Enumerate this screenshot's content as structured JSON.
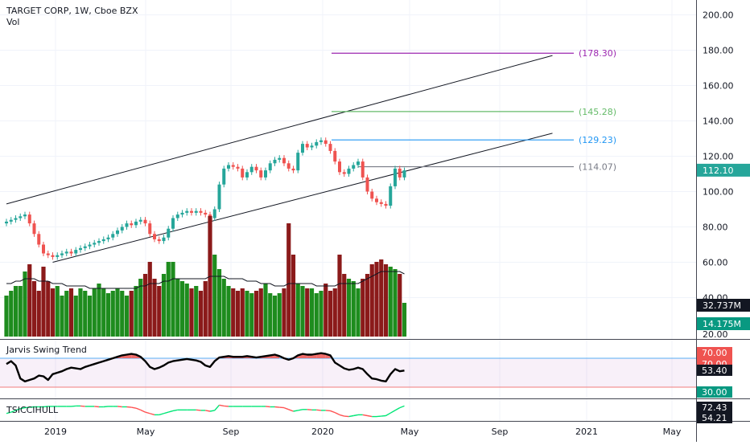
{
  "header": {
    "title": "TARGET CORP, 1W, Cboe BZX",
    "vol_label": "Vol"
  },
  "price_axis": {
    "ticks": [
      "200.00",
      "180.00",
      "160.00",
      "140.00",
      "120.00",
      "100.00",
      "80.00",
      "60.00",
      "40.00"
    ],
    "last_price": "112.10",
    "last_price_color": "#26a69a"
  },
  "volume_axis": {
    "ticks": [
      "20.00"
    ],
    "badges": [
      {
        "text": "32.737M",
        "bg": "#131722"
      },
      {
        "text": "14.175M",
        "bg": "#089981"
      }
    ]
  },
  "indicators": {
    "swing_title": "Jarvis Swing Trend",
    "swing_badges": [
      {
        "text": "70.00",
        "bg": "#ef5350"
      },
      {
        "text": "70.00",
        "bg": "#ef5350"
      },
      {
        "text": "53.40",
        "bg": "#131722"
      },
      {
        "text": "30.00",
        "bg": "#089981"
      }
    ],
    "tsi_title": "TSICCIHULL",
    "tsi_badges": [
      {
        "text": "72.43",
        "bg": "#131722"
      },
      {
        "text": "54.21",
        "bg": "#131722"
      }
    ]
  },
  "time_axis": {
    "labels": [
      "2019",
      "May",
      "Sep",
      "2020",
      "May",
      "Sep",
      "2021",
      "May"
    ]
  },
  "levels": [
    {
      "label": "(178.30)",
      "value": 178.3,
      "color": "#9c27b0"
    },
    {
      "label": "(145.28)",
      "value": 145.28,
      "color": "#66bb6a"
    },
    {
      "label": "(129.23)",
      "value": 129.23,
      "color": "#2196f3"
    },
    {
      "label": "(114.07)",
      "value": 114.07,
      "color": "#787b86"
    }
  ],
  "colors": {
    "up": "#26a69a",
    "down": "#ef5350",
    "vol_up": "#1e8c1e",
    "vol_down": "#8b1a1a"
  },
  "chart_data": {
    "type": "candlestick",
    "title": "TARGET CORP, 1W, Cboe BZX",
    "ylim": [
      40,
      205
    ],
    "channel_lines": [
      {
        "start": [
          0,
          93
        ],
        "end": [
          118,
          177
        ]
      },
      {
        "start": [
          10,
          60
        ],
        "end": [
          118,
          133
        ]
      }
    ],
    "close": [
      83,
      84,
      85,
      86,
      87,
      82,
      76,
      70,
      65,
      64,
      63,
      64,
      65,
      66,
      65,
      67,
      68,
      69,
      70,
      71,
      72,
      73,
      74,
      76,
      78,
      80,
      82,
      81,
      83,
      84,
      82,
      76,
      73,
      72,
      74,
      79,
      85,
      87,
      88,
      89,
      88,
      89,
      88,
      87,
      85,
      90,
      104,
      113,
      115,
      114,
      113,
      108,
      111,
      114,
      112,
      108,
      112,
      116,
      118,
      119,
      116,
      113,
      112,
      122,
      127,
      125,
      126,
      128,
      129,
      127,
      123,
      117,
      111,
      110,
      113,
      115,
      117,
      108,
      100,
      96,
      94,
      93,
      92,
      103,
      113,
      108,
      112
    ],
    "volume": [
      17,
      19,
      21,
      21,
      27,
      30,
      23,
      19,
      29,
      23,
      20,
      21,
      17,
      19,
      20,
      17,
      20,
      19,
      17,
      20,
      22,
      20,
      18,
      19,
      20,
      19,
      17,
      19,
      21,
      24,
      26,
      31,
      24,
      21,
      26,
      31,
      31,
      24,
      23,
      22,
      20,
      21,
      19,
      23,
      50,
      34,
      28,
      24,
      21,
      20,
      19,
      20,
      19,
      18,
      19,
      20,
      22,
      18,
      17,
      18,
      20,
      47,
      34,
      22,
      21,
      20,
      20,
      18,
      19,
      22,
      19,
      20,
      34,
      26,
      24,
      23,
      20,
      24,
      26,
      30,
      31,
      32,
      30,
      29,
      28,
      26,
      14
    ],
    "vol_ma": [
      22,
      22,
      23,
      23,
      24,
      24,
      24,
      23,
      23,
      23,
      22,
      22,
      22,
      21,
      21,
      21,
      21,
      21,
      20,
      20,
      20,
      20,
      20,
      20,
      20,
      20,
      20,
      20,
      20,
      21,
      21,
      22,
      22,
      22,
      23,
      23,
      24,
      24,
      24,
      24,
      24,
      24,
      24,
      24,
      25,
      25,
      25,
      25,
      24,
      24,
      24,
      24,
      23,
      23,
      23,
      22,
      22,
      22,
      21,
      21,
      21,
      22,
      22,
      22,
      22,
      22,
      22,
      21,
      21,
      21,
      21,
      21,
      22,
      22,
      22,
      22,
      22,
      23,
      24,
      25,
      26,
      27,
      27,
      27,
      27,
      27,
      26
    ],
    "swing": [
      62,
      66,
      60,
      42,
      38,
      40,
      42,
      46,
      45,
      40,
      48,
      50,
      52,
      55,
      57,
      56,
      55,
      58,
      60,
      62,
      64,
      66,
      68,
      70,
      72,
      74,
      75,
      76,
      75,
      72,
      66,
      58,
      55,
      57,
      60,
      64,
      66,
      67,
      68,
      69,
      68,
      67,
      65,
      60,
      58,
      66,
      71,
      72,
      73,
      72,
      72,
      72,
      73,
      72,
      71,
      72,
      73,
      74,
      75,
      73,
      70,
      68,
      70,
      74,
      76,
      75,
      75,
      76,
      77,
      76,
      74,
      64,
      60,
      56,
      54,
      55,
      57,
      55,
      48,
      42,
      41,
      39,
      38,
      48,
      55,
      52,
      53
    ],
    "tsi": [
      55,
      58,
      62,
      66,
      68,
      69,
      70,
      70,
      70,
      71,
      71,
      71,
      71,
      71,
      71,
      72,
      72,
      71,
      71,
      71,
      70,
      70,
      71,
      71,
      71,
      70,
      70,
      69,
      67,
      63,
      58,
      55,
      52,
      52,
      55,
      58,
      61,
      63,
      63,
      63,
      63,
      63,
      62,
      62,
      60,
      62,
      74,
      72,
      71,
      71,
      71,
      71,
      71,
      71,
      71,
      71,
      71,
      70,
      70,
      69,
      68,
      64,
      60,
      62,
      64,
      64,
      63,
      63,
      62,
      62,
      61,
      57,
      52,
      49,
      48,
      50,
      52,
      52,
      50,
      48,
      48,
      49,
      50,
      56,
      62,
      68,
      72
    ]
  }
}
